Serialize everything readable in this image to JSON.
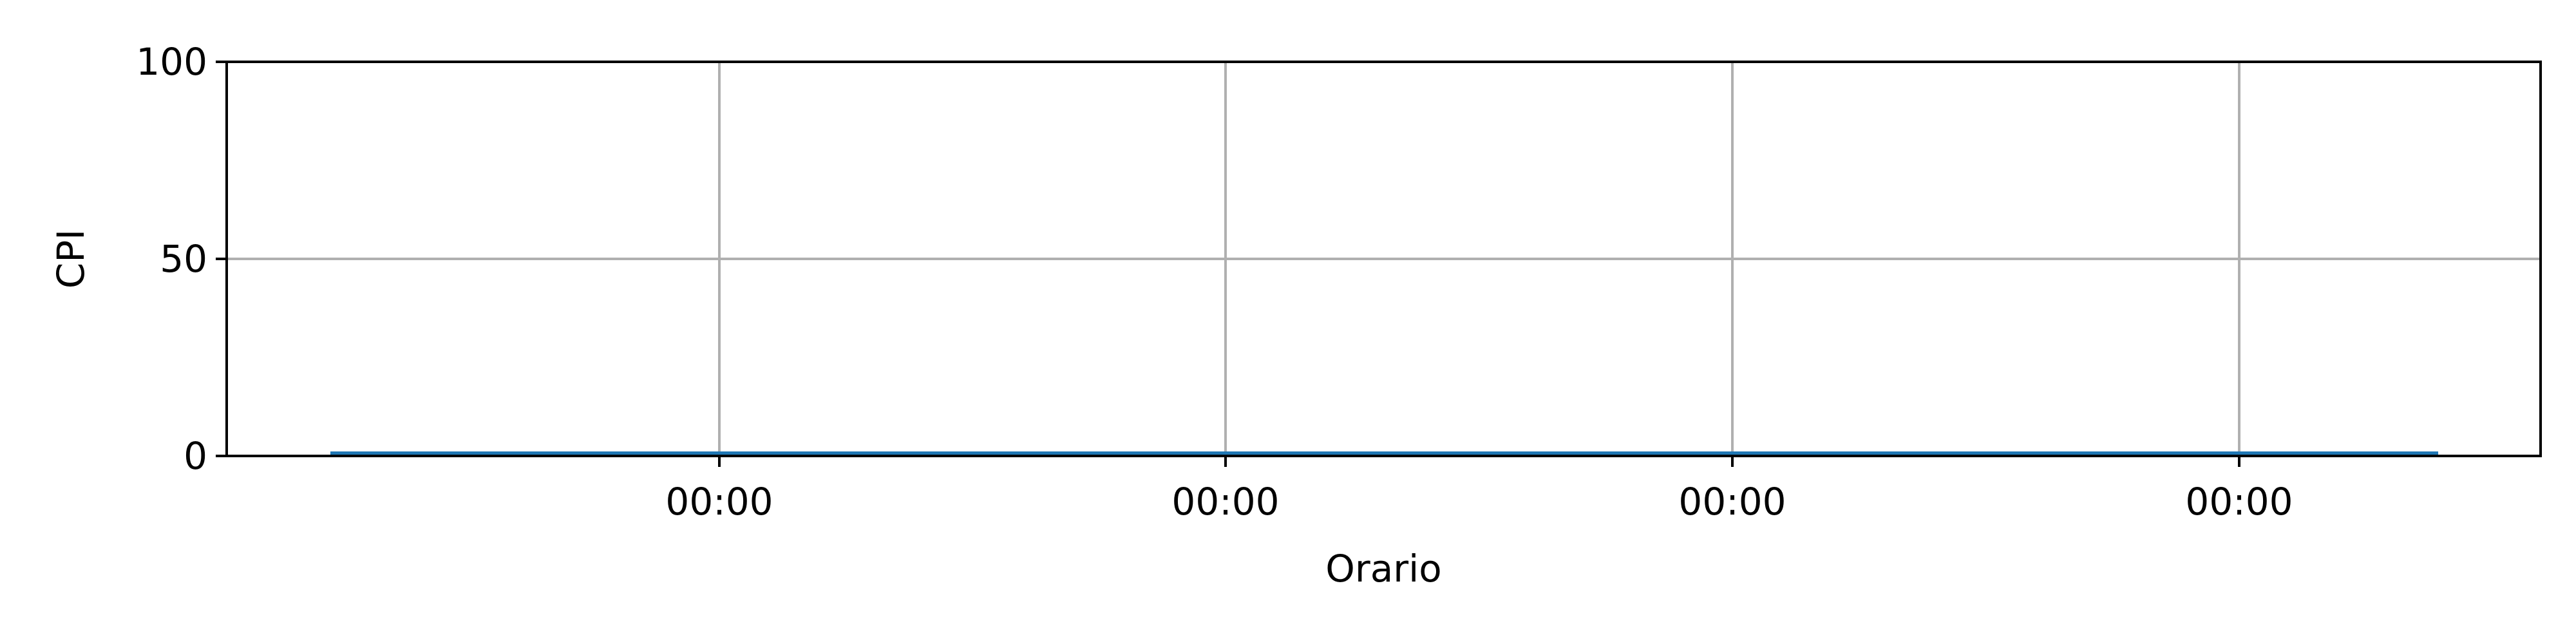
{
  "chart_data": {
    "type": "line",
    "title": "",
    "xlabel": "Orario",
    "ylabel": "CPI",
    "ylim": [
      0,
      100
    ],
    "yticks": [
      0,
      50,
      100
    ],
    "xtick_labels": [
      "00:00",
      "00:00",
      "00:00",
      "00:00"
    ],
    "grid": true,
    "legend": "none",
    "series": [
      {
        "color": "#1f77b4",
        "x_index": [
          0,
          1,
          2,
          3,
          4,
          5,
          6,
          7,
          8,
          9
        ],
        "values": [
          0,
          0,
          0,
          0,
          0,
          0,
          0,
          0,
          0,
          0
        ]
      }
    ],
    "colors": {
      "grid": "#b0b0b0",
      "axes": "#000000",
      "line": "#1f77b4"
    }
  }
}
